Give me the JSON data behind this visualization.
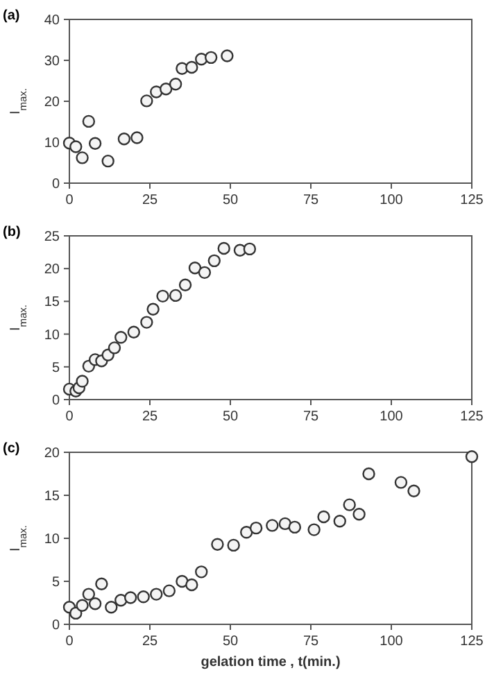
{
  "chart_data": [
    {
      "type": "scatter",
      "title": "(a)",
      "ylabel": "I$_{max.}$",
      "marker": "circle",
      "grid": false,
      "xlim": [
        0,
        125
      ],
      "xticks": [
        0,
        25,
        50,
        75,
        100,
        125
      ],
      "ylim": [
        0,
        40
      ],
      "yticks": [
        0,
        10,
        20,
        30,
        40
      ],
      "series": [
        {
          "color": "#333333",
          "x": [
            0,
            2,
            4,
            6,
            8,
            12,
            17,
            21,
            24,
            27,
            30,
            33,
            35,
            38,
            41,
            44,
            49
          ],
          "values": [
            9.8,
            8.9,
            6.2,
            15.1,
            9.7,
            5.4,
            10.8,
            11.1,
            20.1,
            22.3,
            23,
            24.2,
            28,
            28.3,
            30.3,
            30.7,
            31.1
          ]
        }
      ]
    },
    {
      "type": "scatter",
      "title": "(b)",
      "ylabel": "I$_{max.}$",
      "marker": "circle",
      "grid": false,
      "xlim": [
        0,
        125
      ],
      "xticks": [
        0,
        25,
        50,
        75,
        100,
        125
      ],
      "ylim": [
        0,
        25
      ],
      "yticks": [
        0,
        5,
        10,
        15,
        20,
        25
      ],
      "series": [
        {
          "color": "#333333",
          "x": [
            0,
            2,
            3,
            4,
            6,
            8,
            10,
            12,
            14,
            16,
            20,
            24,
            26,
            29,
            33,
            36,
            39,
            42,
            45,
            48,
            53,
            56
          ],
          "values": [
            1.6,
            1.3,
            1.8,
            2.8,
            5.1,
            6.1,
            5.9,
            6.8,
            7.9,
            9.5,
            10.3,
            11.8,
            13.8,
            15.8,
            15.9,
            17.5,
            20.1,
            19.4,
            21.2,
            23.1,
            22.8,
            23
          ]
        }
      ]
    },
    {
      "type": "scatter",
      "title": "(c)",
      "ylabel": "I$_{max.}$",
      "xlabel": "gelation  time , t(min.)",
      "marker": "circle",
      "grid": false,
      "xlim": [
        0,
        125
      ],
      "xticks": [
        0,
        25,
        50,
        75,
        100,
        125
      ],
      "ylim": [
        0,
        20
      ],
      "yticks": [
        0,
        5,
        10,
        15,
        20
      ],
      "series": [
        {
          "color": "#333333",
          "x": [
            0,
            2,
            4,
            6,
            8,
            10,
            13,
            16,
            19,
            23,
            27,
            31,
            35,
            38,
            41,
            46,
            51,
            55,
            58,
            63,
            67,
            70,
            76,
            79,
            84,
            87,
            90,
            93,
            103,
            107,
            125
          ],
          "values": [
            2,
            1.3,
            2.2,
            3.5,
            2.4,
            4.7,
            2,
            2.8,
            3.1,
            3.2,
            3.5,
            3.9,
            5,
            4.6,
            6.1,
            9.3,
            9.2,
            10.7,
            11.2,
            11.5,
            11.7,
            11.3,
            11,
            12.5,
            12,
            13.9,
            12.8,
            17.5,
            16.5,
            15.5,
            19.5
          ]
        }
      ]
    }
  ]
}
